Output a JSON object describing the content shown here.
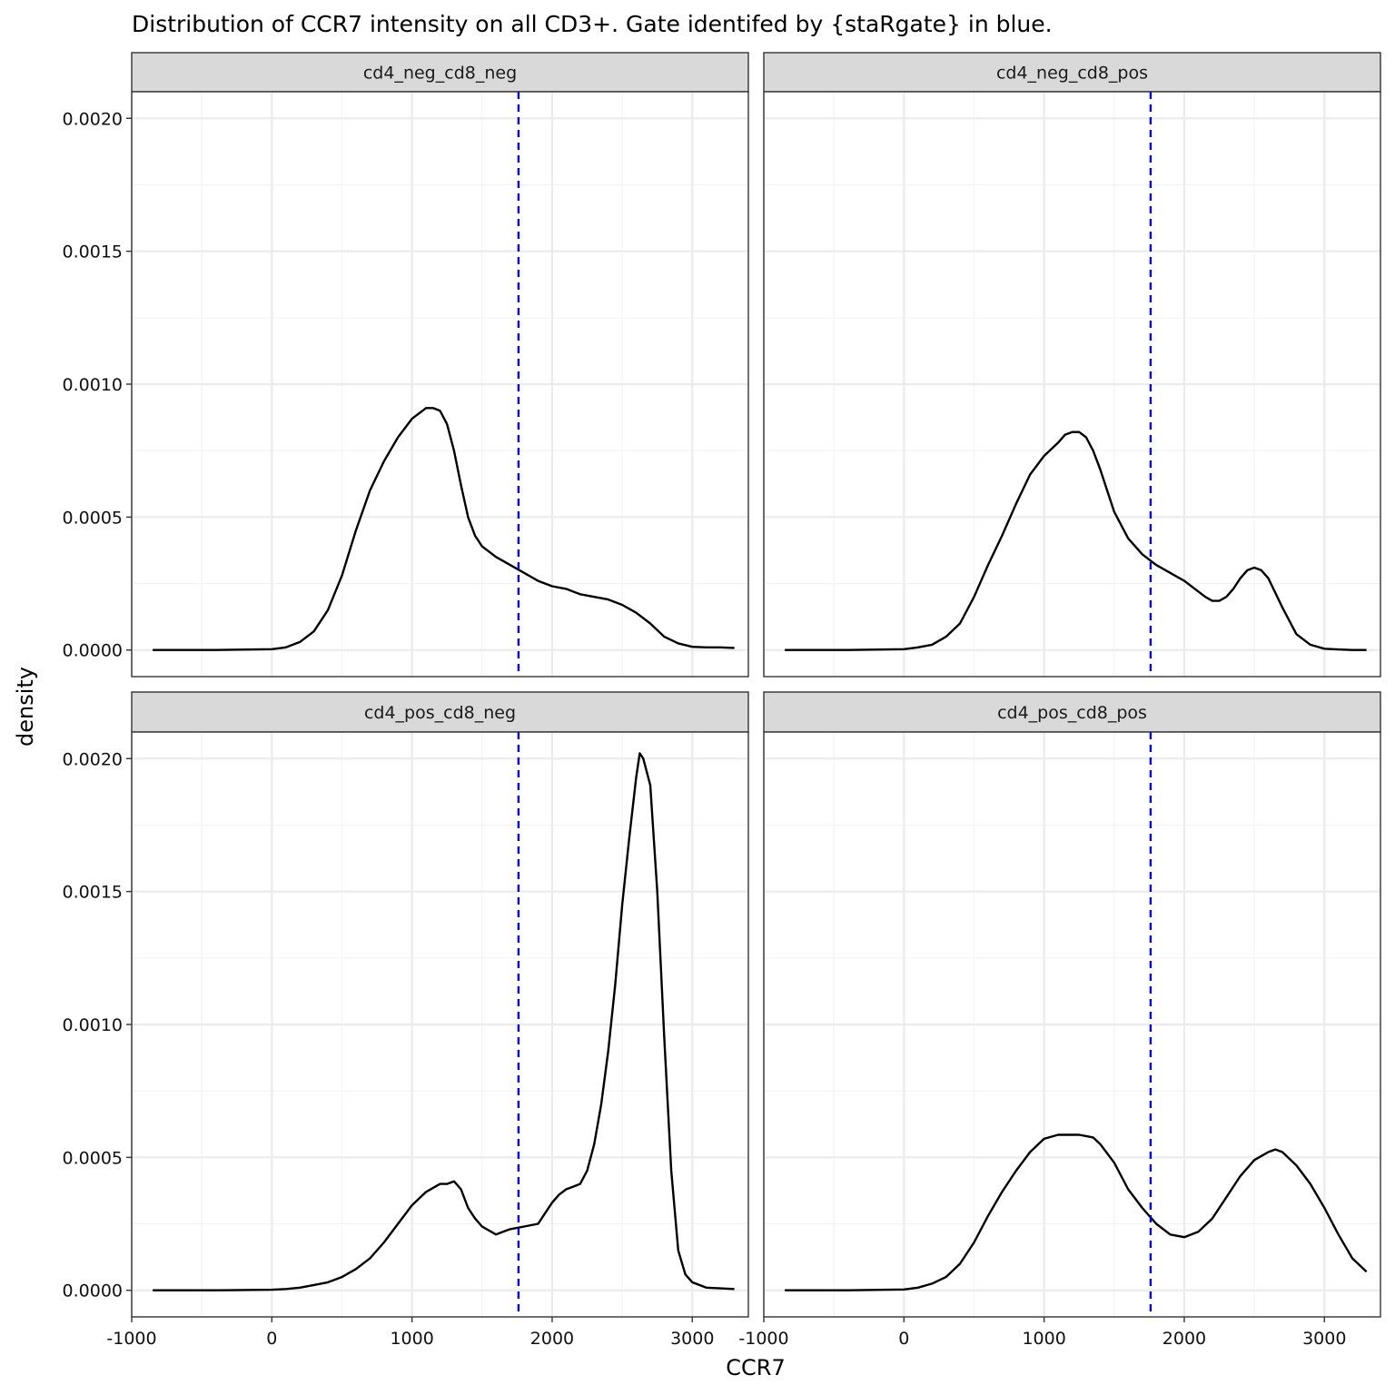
{
  "chart_data": {
    "type": "line",
    "title": "Distribution of CCR7 intensity on all CD3+. Gate identifed by {staRgate} in blue.",
    "xlabel": "CCR7",
    "ylabel": "density",
    "xlim": [
      -1000,
      3400
    ],
    "ylim": [
      -0.0001,
      0.0021
    ],
    "x_ticks": [
      -1000,
      0,
      1000,
      2000,
      3000
    ],
    "x_tick_labels": [
      "-1000",
      "0",
      "1000",
      "2000",
      "3000"
    ],
    "y_ticks": [
      0,
      0.0005,
      0.001,
      0.0015,
      0.002
    ],
    "y_tick_labels": [
      "0.0000",
      "0.0005",
      "0.0010",
      "0.0015",
      "0.0020"
    ],
    "grid": true,
    "gate": {
      "x": 1760,
      "color": "#0000ff",
      "style": "dashed"
    },
    "line_color": "#000000",
    "facets": [
      {
        "label": "cd4_neg_cd8_neg",
        "x": [
          -850,
          -400,
          0,
          100,
          200,
          300,
          400,
          500,
          600,
          700,
          800,
          900,
          1000,
          1100,
          1150,
          1200,
          1250,
          1300,
          1350,
          1400,
          1450,
          1500,
          1600,
          1700,
          1800,
          1900,
          2000,
          2100,
          2200,
          2300,
          2400,
          2500,
          2600,
          2700,
          2800,
          2900,
          3000,
          3100,
          3200,
          3300
        ],
        "y": [
          0,
          0,
          3e-06,
          1e-05,
          3e-05,
          7e-05,
          0.00015,
          0.00028,
          0.00045,
          0.0006,
          0.00071,
          0.0008,
          0.00087,
          0.00091,
          0.00091,
          0.0009,
          0.00085,
          0.00075,
          0.00062,
          0.0005,
          0.00043,
          0.00039,
          0.00035,
          0.00032,
          0.00029,
          0.00026,
          0.00024,
          0.00023,
          0.00021,
          0.0002,
          0.00019,
          0.00017,
          0.00014,
          0.0001,
          5e-05,
          2.5e-05,
          1.2e-05,
          1e-05,
          1e-05,
          8e-06
        ]
      },
      {
        "label": "cd4_neg_cd8_pos",
        "x": [
          -850,
          -400,
          0,
          100,
          200,
          300,
          400,
          500,
          600,
          700,
          800,
          900,
          1000,
          1100,
          1150,
          1200,
          1250,
          1300,
          1350,
          1400,
          1450,
          1500,
          1600,
          1700,
          1800,
          1900,
          2000,
          2100,
          2150,
          2200,
          2250,
          2300,
          2350,
          2400,
          2450,
          2500,
          2550,
          2600,
          2700,
          2800,
          2900,
          3000,
          3100,
          3200,
          3300
        ],
        "y": [
          0,
          0,
          3e-06,
          1e-05,
          2e-05,
          5e-05,
          0.0001,
          0.0002,
          0.00032,
          0.00043,
          0.00055,
          0.00066,
          0.00073,
          0.00078,
          0.00081,
          0.00082,
          0.00082,
          0.0008,
          0.00075,
          0.00068,
          0.0006,
          0.00052,
          0.00042,
          0.00036,
          0.00032,
          0.00029,
          0.00026,
          0.00022,
          0.0002,
          0.000185,
          0.000185,
          0.0002,
          0.00023,
          0.00027,
          0.0003,
          0.00031,
          0.0003,
          0.00027,
          0.00016,
          6e-05,
          2e-05,
          5e-06,
          2e-06,
          0,
          0
        ]
      },
      {
        "label": "cd4_pos_cd8_neg",
        "x": [
          -850,
          -400,
          0,
          100,
          200,
          300,
          400,
          500,
          600,
          700,
          800,
          900,
          1000,
          1100,
          1200,
          1250,
          1300,
          1350,
          1400,
          1450,
          1500,
          1600,
          1650,
          1700,
          1800,
          1900,
          1950,
          2000,
          2050,
          2100,
          2150,
          2200,
          2250,
          2300,
          2350,
          2400,
          2450,
          2500,
          2550,
          2600,
          2625,
          2650,
          2700,
          2750,
          2800,
          2850,
          2900,
          2950,
          3000,
          3100,
          3300
        ],
        "y": [
          0,
          0,
          2e-06,
          5e-06,
          1e-05,
          2e-05,
          3e-05,
          5e-05,
          8e-05,
          0.00012,
          0.00018,
          0.00025,
          0.00032,
          0.00037,
          0.0004,
          0.0004,
          0.00041,
          0.00038,
          0.00031,
          0.00027,
          0.00024,
          0.00021,
          0.00022,
          0.00023,
          0.00024,
          0.00025,
          0.00029,
          0.00033,
          0.00036,
          0.00038,
          0.00039,
          0.0004,
          0.00045,
          0.00055,
          0.0007,
          0.0009,
          0.00115,
          0.00145,
          0.0017,
          0.00193,
          0.00202,
          0.002,
          0.0019,
          0.0015,
          0.00095,
          0.00045,
          0.00015,
          6e-05,
          3e-05,
          1e-05,
          5e-06
        ]
      },
      {
        "label": "cd4_pos_cd8_pos",
        "x": [
          -850,
          -400,
          0,
          100,
          200,
          300,
          400,
          500,
          600,
          700,
          800,
          900,
          1000,
          1100,
          1200,
          1250,
          1300,
          1350,
          1400,
          1500,
          1600,
          1700,
          1800,
          1900,
          2000,
          2100,
          2200,
          2300,
          2400,
          2500,
          2600,
          2650,
          2700,
          2800,
          2900,
          3000,
          3100,
          3200,
          3300
        ],
        "y": [
          0,
          0,
          3e-06,
          1e-05,
          2.5e-05,
          5e-05,
          0.0001,
          0.00018,
          0.00028,
          0.00037,
          0.00045,
          0.00052,
          0.00057,
          0.000585,
          0.000585,
          0.000585,
          0.00058,
          0.000575,
          0.00055,
          0.00048,
          0.00038,
          0.00031,
          0.00025,
          0.00021,
          0.0002,
          0.00022,
          0.00027,
          0.00035,
          0.00043,
          0.00049,
          0.00052,
          0.00053,
          0.00052,
          0.00047,
          0.0004,
          0.00031,
          0.00021,
          0.00012,
          7e-05
        ]
      }
    ]
  }
}
